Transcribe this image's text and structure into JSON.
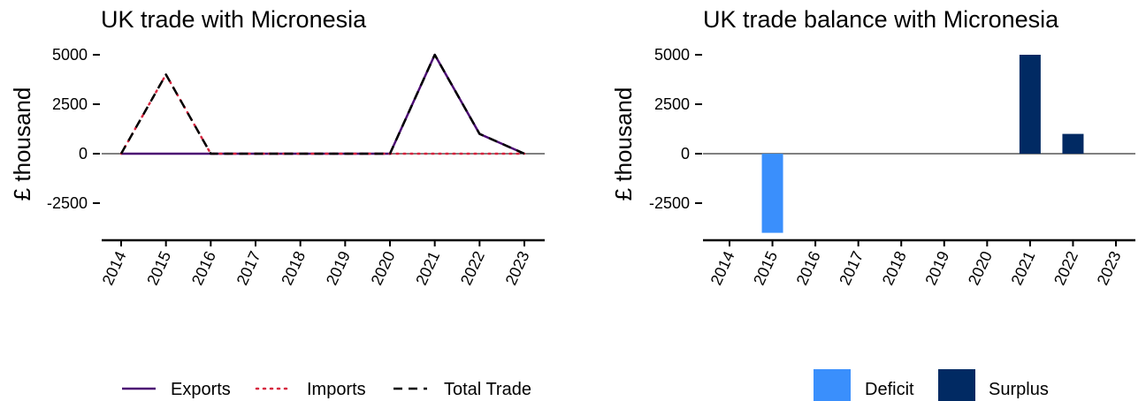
{
  "chart_data": [
    {
      "type": "line",
      "title": "UK trade with Micronesia",
      "ylabel": "£ thousand",
      "xlabel": "",
      "x": [
        "2014",
        "2015",
        "2016",
        "2017",
        "2018",
        "2019",
        "2020",
        "2021",
        "2022",
        "2023"
      ],
      "ylim": [
        -4400,
        5600
      ],
      "yticks": [
        5000,
        2500,
        0,
        -2500
      ],
      "ytick_labels": [
        "5000",
        "2500",
        "0",
        "-2500"
      ],
      "legend_position": "bottom",
      "series": [
        {
          "name": "Exports",
          "values": [
            0,
            0,
            0,
            0,
            0,
            0,
            0,
            5000,
            1000,
            0
          ],
          "color": "#4b0a73",
          "dash": "solid"
        },
        {
          "name": "Imports",
          "values": [
            0,
            4000,
            0,
            0,
            0,
            0,
            0,
            0,
            0,
            0
          ],
          "color": "#d6243e",
          "dash": "dotted"
        },
        {
          "name": "Total Trade",
          "values": [
            0,
            4000,
            0,
            0,
            0,
            0,
            0,
            5000,
            1000,
            0
          ],
          "color": "#000000",
          "dash": "dashed"
        }
      ]
    },
    {
      "type": "bar",
      "title": "UK trade balance with Micronesia",
      "ylabel": "£ thousand",
      "xlabel": "",
      "categories": [
        "2014",
        "2015",
        "2016",
        "2017",
        "2018",
        "2019",
        "2020",
        "2021",
        "2022",
        "2023"
      ],
      "values": [
        0,
        -4000,
        0,
        0,
        0,
        0,
        0,
        5000,
        1000,
        0
      ],
      "ylim": [
        -4400,
        5600
      ],
      "yticks": [
        5000,
        2500,
        0,
        -2500
      ],
      "ytick_labels": [
        "5000",
        "2500",
        "0",
        "-2500"
      ],
      "legend_position": "bottom",
      "legend": [
        {
          "name": "Deficit",
          "color": "#3a8ffc"
        },
        {
          "name": "Surplus",
          "color": "#012a63"
        }
      ]
    }
  ]
}
